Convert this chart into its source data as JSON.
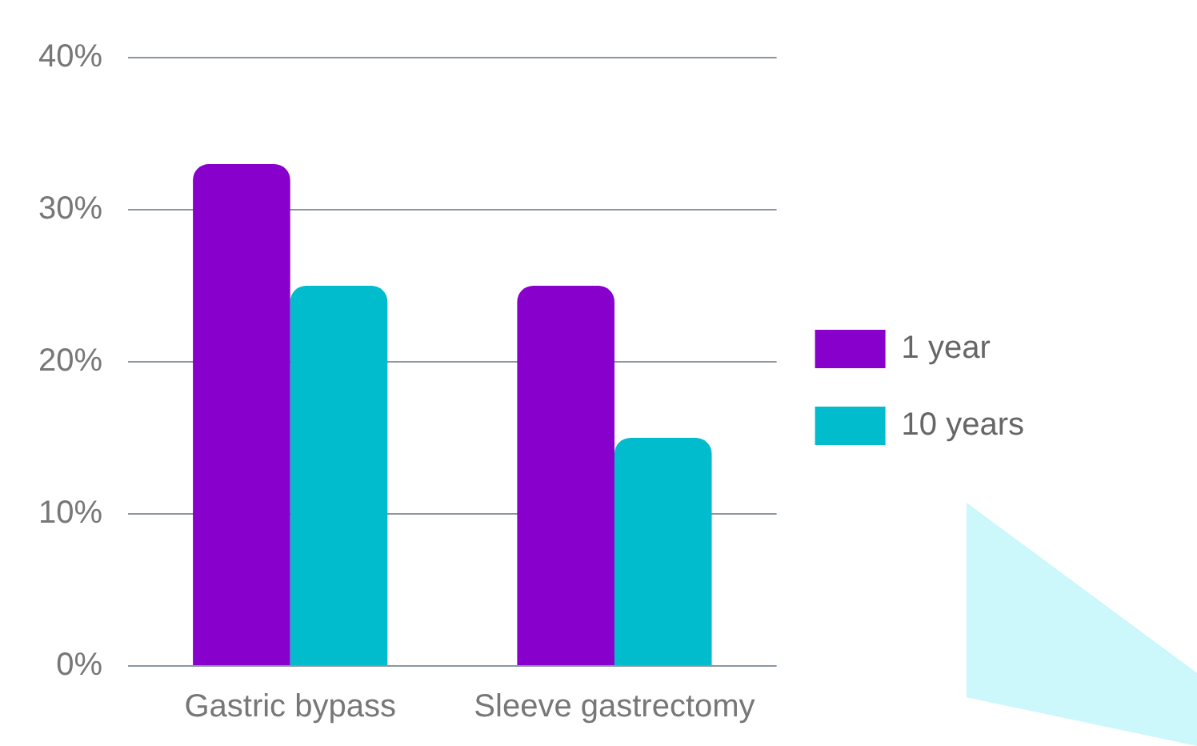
{
  "chart_data": {
    "type": "bar",
    "categories": [
      "Gastric bypass",
      "Sleeve gastrectomy"
    ],
    "series": [
      {
        "name": "1 year",
        "color": "#8800cc",
        "values": [
          33,
          25
        ]
      },
      {
        "name": "10 years",
        "color": "#00bccc",
        "values": [
          25,
          15
        ]
      }
    ],
    "ylim": [
      0,
      40
    ],
    "yticks": [
      {
        "value": 0,
        "label": "0%"
      },
      {
        "value": 10,
        "label": "10%"
      },
      {
        "value": 20,
        "label": "20%"
      },
      {
        "value": 30,
        "label": "30%"
      },
      {
        "value": 40,
        "label": "40%"
      }
    ],
    "grid": "y",
    "legend": "right"
  }
}
